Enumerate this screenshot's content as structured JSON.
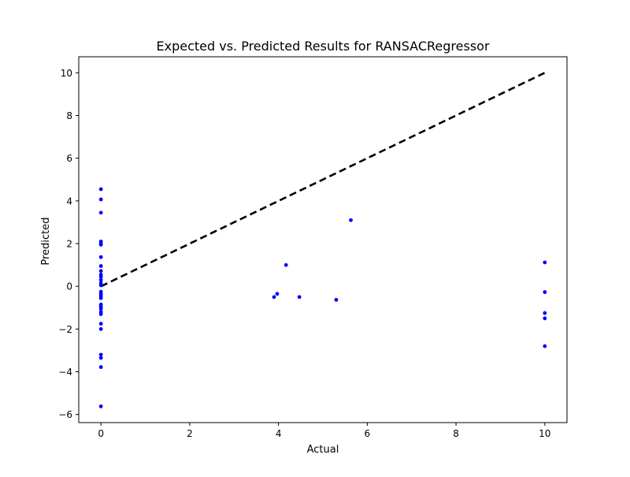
{
  "chart_data": {
    "type": "scatter",
    "title": "Expected vs. Predicted Results for RANSACRegressor",
    "xlabel": "Actual",
    "ylabel": "Predicted",
    "xlim": [
      -0.5,
      10.5
    ],
    "ylim": [
      -6.38,
      10.75
    ],
    "xticks": [
      0,
      2,
      4,
      6,
      8,
      10
    ],
    "yticks": [
      -6,
      -4,
      -2,
      0,
      2,
      4,
      6,
      8,
      10
    ],
    "grid": false,
    "legend": "none",
    "colors": {
      "points": "#0000ff",
      "reference_line": "#000000"
    },
    "reference_line": {
      "style": "dashed",
      "x": [
        0,
        10
      ],
      "y": [
        0,
        10
      ]
    },
    "series": [
      {
        "points": [
          {
            "x": 0,
            "y": 4.55
          },
          {
            "x": 0,
            "y": 4.07
          },
          {
            "x": 0,
            "y": 3.45
          },
          {
            "x": 0,
            "y": 2.1
          },
          {
            "x": 0,
            "y": 2.0
          },
          {
            "x": 0,
            "y": 1.95
          },
          {
            "x": 0,
            "y": 1.37
          },
          {
            "x": 0,
            "y": 0.95
          },
          {
            "x": 0,
            "y": 0.72
          },
          {
            "x": 0,
            "y": 0.55
          },
          {
            "x": 0,
            "y": 0.45
          },
          {
            "x": 0,
            "y": 0.3
          },
          {
            "x": 0,
            "y": 0.15
          },
          {
            "x": 0,
            "y": 0.05
          },
          {
            "x": 0,
            "y": -0.25
          },
          {
            "x": 0,
            "y": -0.35
          },
          {
            "x": 0,
            "y": -0.45
          },
          {
            "x": 0,
            "y": -0.55
          },
          {
            "x": 0,
            "y": -0.85
          },
          {
            "x": 0,
            "y": -0.95
          },
          {
            "x": 0,
            "y": -1.05
          },
          {
            "x": 0,
            "y": -1.2
          },
          {
            "x": 0,
            "y": -1.3
          },
          {
            "x": 0,
            "y": -1.75
          },
          {
            "x": 0,
            "y": -2.0
          },
          {
            "x": 0,
            "y": -3.2
          },
          {
            "x": 0,
            "y": -3.35
          },
          {
            "x": 0,
            "y": -3.78
          },
          {
            "x": 0,
            "y": -5.62
          },
          {
            "x": 3.9,
            "y": -0.5
          },
          {
            "x": 3.97,
            "y": -0.35
          },
          {
            "x": 4.17,
            "y": 1.0
          },
          {
            "x": 4.47,
            "y": -0.5
          },
          {
            "x": 5.3,
            "y": -0.63
          },
          {
            "x": 5.63,
            "y": 3.1
          },
          {
            "x": 10,
            "y": 1.12
          },
          {
            "x": 10,
            "y": -0.27
          },
          {
            "x": 10,
            "y": -1.25
          },
          {
            "x": 10,
            "y": -1.5
          },
          {
            "x": 10,
            "y": -2.8
          }
        ]
      }
    ]
  }
}
